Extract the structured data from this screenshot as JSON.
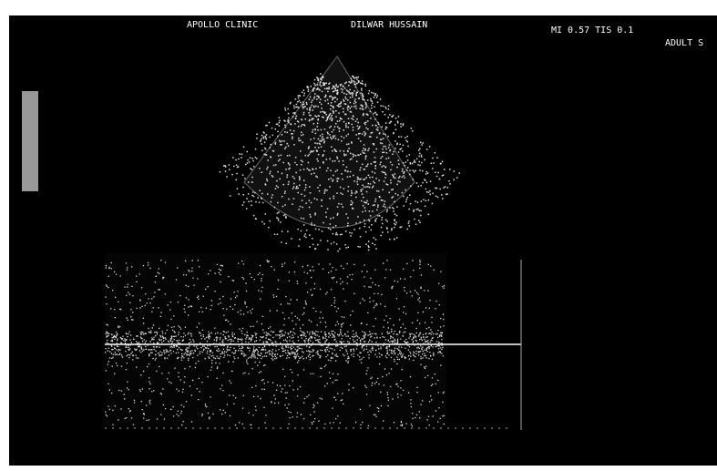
{
  "header": {
    "clinic": "APOLLO CLINIC",
    "patient": "DILWAR HUSSAIN",
    "index": "MI 0.57  TIS 0.1",
    "preset": "ADULT S"
  }
}
